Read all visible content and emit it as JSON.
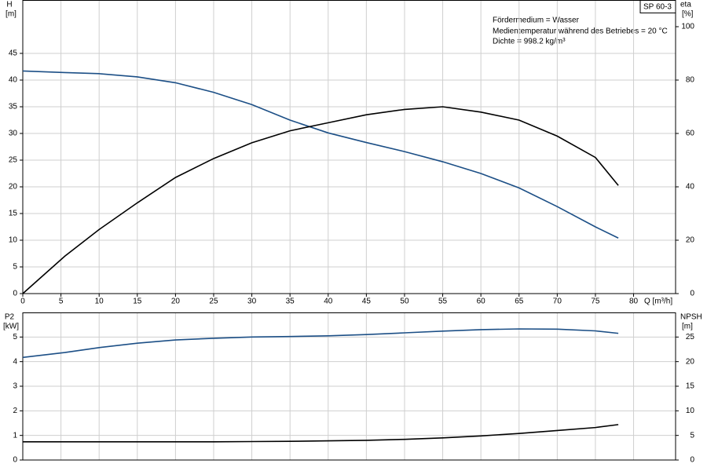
{
  "label": "SP 60-3",
  "notes": [
    "Fördermedium = Wasser",
    "Medientemperatur während des Betriebes = 20 °C",
    "Dichte = 998.2 kg/m³"
  ],
  "chart_data": [
    {
      "type": "line",
      "x_label": "Q [m³/h]",
      "y_label": "H",
      "y_unit": "[m]",
      "y2_label": "eta",
      "y2_unit": "[%]",
      "x": [
        0,
        5.5,
        10,
        15,
        20,
        25,
        30,
        35,
        40,
        45,
        50,
        55,
        60,
        65,
        70,
        75,
        78
      ],
      "xlim": [
        0,
        85.5
      ],
      "xticks": [
        0,
        5,
        10,
        15,
        20,
        25,
        30,
        35,
        40,
        45,
        50,
        55,
        60,
        65,
        70,
        75,
        80
      ],
      "ylim": [
        0,
        55
      ],
      "yticks": [
        0,
        5,
        10,
        15,
        20,
        25,
        30,
        35,
        40,
        45
      ],
      "y2lim": [
        0,
        110
      ],
      "y2ticks": [
        0,
        20,
        40,
        60,
        80,
        100
      ],
      "grid": true,
      "series": [
        {
          "color": "#1c4f86",
          "values": [
            41.7,
            41.4,
            41.2,
            40.6,
            39.5,
            37.7,
            35.4,
            32.5,
            30.1,
            28.3,
            26.6,
            24.7,
            22.5,
            19.8,
            16.3,
            12.5,
            10.4
          ]
        },
        {
          "color": "#000000",
          "axis": "y2",
          "values": [
            0,
            14,
            24,
            34,
            43.5,
            50.6,
            56.5,
            61,
            64,
            67,
            69,
            70,
            68,
            65,
            59,
            51,
            40.5
          ]
        }
      ]
    },
    {
      "type": "line",
      "y_label": "P2",
      "y_unit": "[kW]",
      "y2_label": "NPSH",
      "y2_unit": "[m]",
      "x": [
        0,
        5.5,
        10,
        15,
        20,
        25,
        30,
        35,
        40,
        45,
        50,
        55,
        60,
        65,
        70,
        75,
        78
      ],
      "xlim": [
        0,
        85.5
      ],
      "ylim": [
        0,
        6
      ],
      "yticks": [
        0,
        1,
        2,
        3,
        4,
        5
      ],
      "y2lim": [
        0,
        30
      ],
      "y2ticks": [
        0,
        5,
        10,
        15,
        20,
        25
      ],
      "grid": true,
      "series": [
        {
          "color": "#1c4f86",
          "values": [
            4.17,
            4.37,
            4.57,
            4.75,
            4.88,
            4.95,
            5.0,
            5.02,
            5.05,
            5.1,
            5.17,
            5.24,
            5.3,
            5.33,
            5.32,
            5.25,
            5.15
          ]
        },
        {
          "color": "#000000",
          "axis": "y2",
          "values": [
            3.7,
            3.7,
            3.7,
            3.7,
            3.7,
            3.7,
            3.75,
            3.8,
            3.9,
            4.0,
            4.2,
            4.5,
            4.9,
            5.4,
            6.0,
            6.6,
            7.2
          ]
        }
      ]
    }
  ]
}
